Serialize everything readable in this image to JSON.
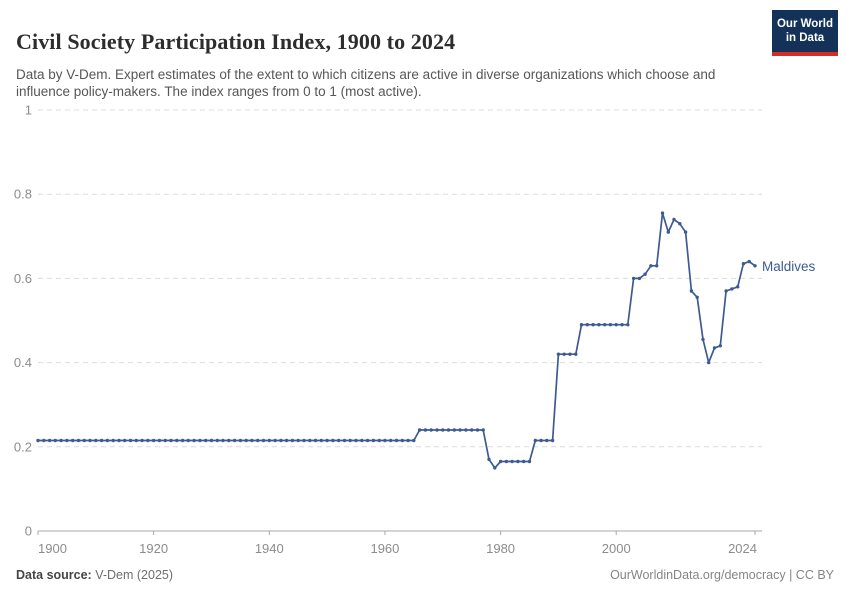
{
  "header": {
    "title": "Civil Society Participation Index, 1900 to 2024",
    "subtitle": "Data by V-Dem. Expert estimates of the extent to which citizens are active in diverse organizations which choose and influence policy-makers. The index ranges from 0 to 1 (most active).",
    "logo": {
      "line1": "Our World",
      "line2": "in Data"
    }
  },
  "footer": {
    "source_label": "Data source:",
    "source_value": " V-Dem (2025)",
    "attribution": "OurWorldinData.org/democracy | CC BY"
  },
  "colors": {
    "line": "#3d5a93",
    "grid_dashed": "#dcdcdc",
    "axis_line": "#a8a8a8",
    "axis_text": "#8c8c8c",
    "logo_bg": "#143259",
    "logo_bar": "#d22d23"
  },
  "chart_data": {
    "type": "line",
    "title": "Civil Society Participation Index, 1900 to 2024",
    "xlabel": "",
    "ylabel": "",
    "xlim": [
      1900,
      2024
    ],
    "ylim": [
      0,
      1
    ],
    "xticks": [
      1900,
      1920,
      1940,
      1960,
      1980,
      2000,
      2024
    ],
    "yticks": [
      0,
      0.2,
      0.4,
      0.6,
      0.8,
      1
    ],
    "ytick_labels": [
      "0",
      "0.2",
      "0.4",
      "0.6",
      "0.8",
      "1"
    ],
    "grid": "horizontal-dashed",
    "legend_position": "end-of-line-label",
    "entity_label": "Maldives",
    "series": [
      {
        "name": "Maldives",
        "x_start": 1900,
        "x_end": 2024,
        "values": [
          0.215,
          0.215,
          0.215,
          0.215,
          0.215,
          0.215,
          0.215,
          0.215,
          0.215,
          0.215,
          0.215,
          0.215,
          0.215,
          0.215,
          0.215,
          0.215,
          0.215,
          0.215,
          0.215,
          0.215,
          0.215,
          0.215,
          0.215,
          0.215,
          0.215,
          0.215,
          0.215,
          0.215,
          0.215,
          0.215,
          0.215,
          0.215,
          0.215,
          0.215,
          0.215,
          0.215,
          0.215,
          0.215,
          0.215,
          0.215,
          0.215,
          0.215,
          0.215,
          0.215,
          0.215,
          0.215,
          0.215,
          0.215,
          0.215,
          0.215,
          0.215,
          0.215,
          0.215,
          0.215,
          0.215,
          0.215,
          0.215,
          0.215,
          0.215,
          0.215,
          0.215,
          0.215,
          0.215,
          0.215,
          0.215,
          0.215,
          0.24,
          0.24,
          0.24,
          0.24,
          0.24,
          0.24,
          0.24,
          0.24,
          0.24,
          0.24,
          0.24,
          0.24,
          0.17,
          0.15,
          0.165,
          0.165,
          0.165,
          0.165,
          0.165,
          0.165,
          0.215,
          0.215,
          0.215,
          0.215,
          0.42,
          0.42,
          0.42,
          0.42,
          0.49,
          0.49,
          0.49,
          0.49,
          0.49,
          0.49,
          0.49,
          0.49,
          0.49,
          0.6,
          0.6,
          0.61,
          0.63,
          0.63,
          0.755,
          0.71,
          0.74,
          0.73,
          0.71,
          0.57,
          0.555,
          0.455,
          0.4,
          0.435,
          0.44,
          0.57,
          0.575,
          0.58,
          0.635,
          0.64,
          0.63
        ]
      }
    ]
  }
}
